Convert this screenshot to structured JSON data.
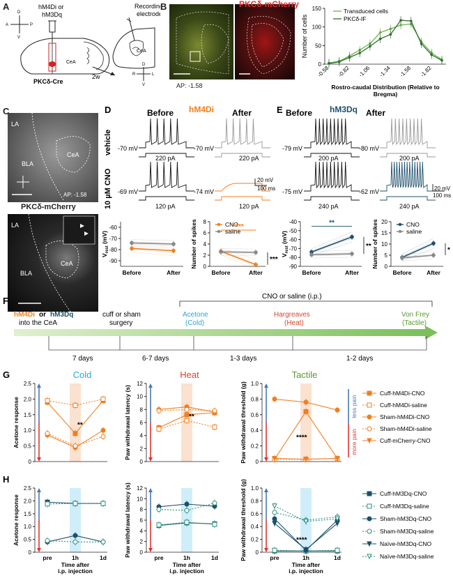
{
  "panels": {
    "A": {
      "letter": "A",
      "virus": "hM4Di or",
      "virus2": "hM3Dq",
      "recording": "Recording",
      "recording2": "electrode",
      "cea": "CeA",
      "cea2": "CeA",
      "delay": "2w",
      "mouse": "PKCδ-Cre",
      "axes_left": {
        "d": "D",
        "v": "V",
        "a": "A",
        "p": "P"
      },
      "axes_right": {
        "d": "D",
        "v": "V",
        "r": "R",
        "l": "L"
      }
    },
    "B": {
      "letter": "B",
      "title": "PKCδ-mCherry",
      "ap": "AP: -1.58",
      "chart_title_y": "Number of cells",
      "chart_xlabel_1": "Rostro-caudal Distribution (Relative to",
      "chart_xlabel_2": "Bregma)",
      "legend_1": "Transduced cells",
      "legend_2": "PKCδ-IF"
    },
    "C": {
      "letter": "C",
      "la": "LA",
      "bla": "BLA",
      "cea": "CeA",
      "ap": "AP: -1.58",
      "title": "PKCδ-mCherry",
      "la2": "LA",
      "bla2": "BLA",
      "cea2": "CeA"
    },
    "D": {
      "letter": "D",
      "before": "Before",
      "virus": "hM4Di",
      "after": "After",
      "row1": "vehicle",
      "row2": "10 µM CNO",
      "v1": "-70 mV",
      "v2": "-70 mV",
      "i1": "220 pA",
      "i2": "220 pA",
      "v3": "-69 mV",
      "v4": "-74 mV",
      "i3": "120 pA",
      "i4": "120 pA",
      "sb_v": "20 mV",
      "sb_t": "100 ms",
      "vrest_label": "V",
      "vrest_sub": "rest",
      "vrest_unit": " (mV)",
      "spikes_label": "Number of spikes",
      "legend_cno": "CNO",
      "legend_saline": "saline",
      "sig1": "****",
      "sig2": "***",
      "xb": "Before",
      "xa": "After"
    },
    "E": {
      "letter": "E",
      "before": "Before",
      "virus": "hM3Dq",
      "after": "After",
      "v1": "-79 mV",
      "v2": "-80 mV",
      "i1": "200 pA",
      "i2": "200 pA",
      "v3": "-75 mV",
      "v4": "-62 mV",
      "i3": "240 pA",
      "i4": "240 pA",
      "sb_v": "20 mV",
      "sb_t": "100 ms",
      "legend_cno": "CNO",
      "legend_saline": "saline",
      "sig1": "**",
      "sig2": "**",
      "sig3": "*",
      "xb": "Before",
      "xa": "After"
    },
    "F": {
      "letter": "F",
      "top": "CNO or saline (i.p.)",
      "hm4di": "hM4Di",
      "or": " or ",
      "hm3dq": "hM3Dq",
      "into": "into the CeA",
      "cuff1": "cuff or sham",
      "cuff2": "surgery",
      "acetone1": "Acetone",
      "acetone2": "(Cold)",
      "harg1": "Hargreaves",
      "harg2": "(Heat)",
      "vf1": "Von Frey",
      "vf2": "(Tactile)",
      "d1": "7 days",
      "d2": "6-7 days",
      "d3": "1-3 days",
      "d4": "1-2 days"
    },
    "G": {
      "letter": "G",
      "cold": "Cold",
      "heat": "Heat",
      "tactile": "Tactile",
      "y1": "Acetone response",
      "y2": "Paw withdrawal latency (s)",
      "y3": "Paw withdrawal threshold (g)",
      "less": "less pain",
      "more": "more pain",
      "sig1": "**",
      "sig2": "**",
      "sig3": "****",
      "legend": [
        "Cuff-hM4Di-CNO",
        "Cuff-hM4Di-saline",
        "Sham-hM4Di-CNO",
        "Sham-hM4Di-saline",
        "Cuff-mCherry-CNO"
      ]
    },
    "H": {
      "letter": "H",
      "y1": "Acetone response",
      "y2": "Paw withdrawal latency (s)",
      "y3": "Paw withdrawal threshold (g)",
      "sig": "****",
      "xpre": "pre",
      "x1h": "1h",
      "x1d": "1d",
      "xlabel1": "Time after",
      "xlabel2": "i.p. injection",
      "legend": [
        "Cuff-hM3Dq-CNO",
        "Cuff-hM3Dq-saline",
        "Sham-hM3Dq-CNO",
        "Sham-hM3Dq-saline",
        "Naïve-hM3Dq-CNO",
        "Naïve-hM3Dq-saline"
      ]
    }
  },
  "colors": {
    "orange": "#f07f1f",
    "light_orange": "#f6b27a",
    "navy": "#1c4f6b",
    "teal": "#2a8f7a",
    "green": "#6ab04c",
    "dark_green": "#2f6e2f",
    "red": "#e0332f",
    "blue_cold": "#29a8d6",
    "heat_red": "#d9432b",
    "tactile_green": "#5a9a2e",
    "blue_arrow": "#4a78b5",
    "cyan_shade": "#cfeefa",
    "peach_shade": "#fbe1cf"
  },
  "chart_data": [
    {
      "type": "line",
      "panel": "B",
      "x": [
        -0.58,
        -0.7,
        -0.82,
        -0.94,
        -1.06,
        -1.22,
        -1.34,
        -1.46,
        -1.58,
        -1.7,
        -1.82,
        -1.94
      ],
      "x_ticks": [
        "-0.58",
        "-0.82",
        "-1.06",
        "-1.34",
        "-1.58",
        "-1.82"
      ],
      "ylim": [
        0,
        150
      ],
      "y_ticks": [
        0,
        50,
        100,
        150
      ],
      "series": [
        {
          "name": "Transduced cells",
          "values": [
            3,
            8,
            22,
            38,
            55,
            85,
            95,
            105,
            108,
            60,
            30,
            12
          ]
        },
        {
          "name": "PKCδ-IF",
          "values": [
            2,
            6,
            18,
            30,
            48,
            68,
            80,
            118,
            116,
            55,
            25,
            10
          ]
        }
      ]
    },
    {
      "type": "line",
      "panel": "D-vrest",
      "categories": [
        "Before",
        "After"
      ],
      "ylim": [
        -95,
        -55
      ],
      "y_ticks": [
        -90,
        -80,
        -70,
        -60
      ],
      "series": [
        {
          "name": "CNO",
          "values": [
            -79,
            -81
          ]
        },
        {
          "name": "saline",
          "values": [
            -74,
            -75
          ]
        }
      ]
    },
    {
      "type": "line",
      "panel": "D-spikes",
      "categories": [
        "Before",
        "After"
      ],
      "ylim": [
        0,
        8
      ],
      "y_ticks": [
        0,
        2,
        4,
        6,
        8
      ],
      "series": [
        {
          "name": "CNO",
          "values": [
            2.7,
            0.3
          ]
        },
        {
          "name": "saline",
          "values": [
            2.6,
            2.5
          ]
        }
      ]
    },
    {
      "type": "line",
      "panel": "E-vrest",
      "categories": [
        "Before",
        "After"
      ],
      "ylim": [
        -90,
        -40
      ],
      "y_ticks": [
        -90,
        -80,
        -70,
        -60,
        -50,
        -40
      ],
      "series": [
        {
          "name": "CNO",
          "values": [
            -74,
            -57
          ]
        },
        {
          "name": "saline",
          "values": [
            -77,
            -76
          ]
        }
      ]
    },
    {
      "type": "line",
      "panel": "E-spikes",
      "categories": [
        "Before",
        "After"
      ],
      "ylim": [
        0,
        20
      ],
      "y_ticks": [
        0,
        5,
        10,
        15,
        20
      ],
      "series": [
        {
          "name": "CNO",
          "values": [
            4,
            10.3
          ]
        },
        {
          "name": "saline",
          "values": [
            3.8,
            5
          ]
        }
      ]
    },
    {
      "type": "line",
      "panel": "G-cold",
      "categories": [
        "pre",
        "1h",
        "1d"
      ],
      "ylim": [
        0,
        2.5
      ],
      "y_ticks": [
        0,
        0.5,
        1.0,
        1.5,
        2.0,
        2.5
      ],
      "series": [
        {
          "name": "Cuff-hM4Di-CNO",
          "values": [
            1.9,
            0.9,
            1.95
          ]
        },
        {
          "name": "Cuff-hM4Di-saline",
          "values": [
            1.95,
            1.8,
            2.0
          ]
        },
        {
          "name": "Sham-hM4Di-CNO",
          "values": [
            0.85,
            0.45,
            1.0
          ]
        },
        {
          "name": "Sham-hM4Di-saline",
          "values": [
            0.9,
            0.5,
            0.8
          ]
        }
      ]
    },
    {
      "type": "line",
      "panel": "G-heat",
      "categories": [
        "pre",
        "1h",
        "1d"
      ],
      "ylim": [
        0,
        12
      ],
      "y_ticks": [
        0,
        2,
        4,
        6,
        8,
        10,
        12
      ],
      "series": [
        {
          "name": "Cuff-hM4Di-CNO",
          "values": [
            5.2,
            7.2,
            7.5
          ]
        },
        {
          "name": "Cuff-hM4Di-saline",
          "values": [
            5.0,
            6.3,
            5.3
          ]
        },
        {
          "name": "Sham-hM4Di-CNO",
          "values": [
            8.0,
            8.4,
            7.6
          ]
        },
        {
          "name": "Sham-hM4Di-saline",
          "values": [
            7.8,
            8.0,
            7.8
          ]
        }
      ]
    },
    {
      "type": "line",
      "panel": "G-tactile",
      "categories": [
        "pre",
        "1h",
        "1d"
      ],
      "ylim": [
        0,
        1.0
      ],
      "y_ticks": [
        0,
        0.2,
        0.4,
        0.6,
        0.8,
        1.0
      ],
      "series": [
        {
          "name": "Cuff-hM4Di-CNO",
          "values": [
            0.03,
            0.64,
            0.04
          ]
        },
        {
          "name": "Cuff-hM4Di-saline",
          "values": [
            0.03,
            0.03,
            0.04
          ]
        },
        {
          "name": "Sham-hM4Di-CNO",
          "values": [
            0.8,
            0.76,
            0.66
          ]
        },
        {
          "name": "Cuff-mCherry-CNO",
          "values": [
            0.04,
            0.03,
            0.04
          ]
        }
      ]
    },
    {
      "type": "line",
      "panel": "H-cold",
      "categories": [
        "pre",
        "1h",
        "1d"
      ],
      "ylim": [
        0,
        2.5
      ],
      "y_ticks": [
        0,
        0.5,
        1.0,
        1.5,
        2.0,
        2.5
      ],
      "series": [
        {
          "name": "Cuff-hM3Dq-CNO",
          "values": [
            1.95,
            1.9,
            1.9
          ]
        },
        {
          "name": "Cuff-hM3Dq-saline",
          "values": [
            1.88,
            1.9,
            1.9
          ]
        },
        {
          "name": "Sham-hM3Dq-CNO",
          "values": [
            0.4,
            0.65,
            0.4
          ]
        },
        {
          "name": "Sham-hM3Dq-saline",
          "values": [
            0.45,
            0.4,
            0.4
          ]
        }
      ]
    },
    {
      "type": "line",
      "panel": "H-heat",
      "categories": [
        "pre",
        "1h",
        "1d"
      ],
      "ylim": [
        0,
        12
      ],
      "y_ticks": [
        0,
        2,
        4,
        6,
        8,
        10,
        12
      ],
      "series": [
        {
          "name": "Cuff-hM3Dq-CNO",
          "values": [
            5.0,
            5.5,
            5.3
          ]
        },
        {
          "name": "Cuff-hM3Dq-saline",
          "values": [
            5.1,
            5.6,
            5.2
          ]
        },
        {
          "name": "Sham-hM3Dq-CNO",
          "values": [
            8.5,
            9.0,
            8.6
          ]
        },
        {
          "name": "Sham-hM3Dq-saline",
          "values": [
            8.0,
            7.8,
            9.2
          ]
        }
      ]
    },
    {
      "type": "line",
      "panel": "H-tactile",
      "categories": [
        "pre",
        "1h",
        "1d"
      ],
      "ylim": [
        0,
        1.0
      ],
      "y_ticks": [
        0,
        0.2,
        0.4,
        0.6,
        0.8,
        1.0
      ],
      "series": [
        {
          "name": "Cuff-hM3Dq-CNO",
          "values": [
            0.02,
            0.02,
            0.02
          ]
        },
        {
          "name": "Cuff-hM3Dq-saline",
          "values": [
            0.03,
            0.02,
            0.03
          ]
        },
        {
          "name": "Sham-hM3Dq-CNO",
          "values": [
            0.52,
            0.03,
            0.5
          ]
        },
        {
          "name": "Sham-hM3Dq-saline",
          "values": [
            0.62,
            0.5,
            0.55
          ]
        },
        {
          "name": "Naïve-hM3Dq-CNO",
          "values": [
            0.45,
            0.04,
            0.45
          ]
        },
        {
          "name": "Naïve-hM3Dq-saline",
          "values": [
            0.72,
            0.48,
            0.52
          ]
        }
      ]
    }
  ]
}
